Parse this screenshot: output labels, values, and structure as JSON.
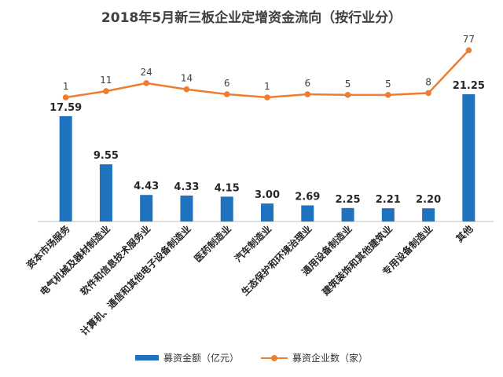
{
  "colors": {
    "bar": "#1F73BE",
    "line": "#ED7D31",
    "text": "#404040",
    "axis": "#BFBFBF"
  },
  "chart_data": {
    "type": "bar",
    "title": "2018年5月新三板企业定增资金流向（按行业分）",
    "categories": [
      "资本市场服务",
      "电气机械及器材制造业",
      "软件和信息技术服务业",
      "计算机、通信和其他电子设备制造业",
      "医药制造业",
      "汽车制造业",
      "生态保护和环境治理业",
      "通用设备制造业",
      "建筑装饰和其他建筑业",
      "专用设备制造业",
      "其他"
    ],
    "series": [
      {
        "name": "募资金额（亿元）",
        "type": "bar",
        "values": [
          17.59,
          9.55,
          4.43,
          4.33,
          4.15,
          3.0,
          2.69,
          2.25,
          2.21,
          2.2,
          21.25
        ],
        "labels": [
          "17.59",
          "9.55",
          "4.43",
          "4.33",
          "4.15",
          "3.00",
          "2.69",
          "2.25",
          "2.21",
          "2.20",
          "21.25"
        ]
      },
      {
        "name": "募资企业数（家）",
        "type": "line",
        "values": [
          1,
          11,
          24,
          14,
          6,
          1,
          6,
          5,
          5,
          8,
          77
        ]
      }
    ],
    "grid": false,
    "legend_position": "bottom"
  }
}
